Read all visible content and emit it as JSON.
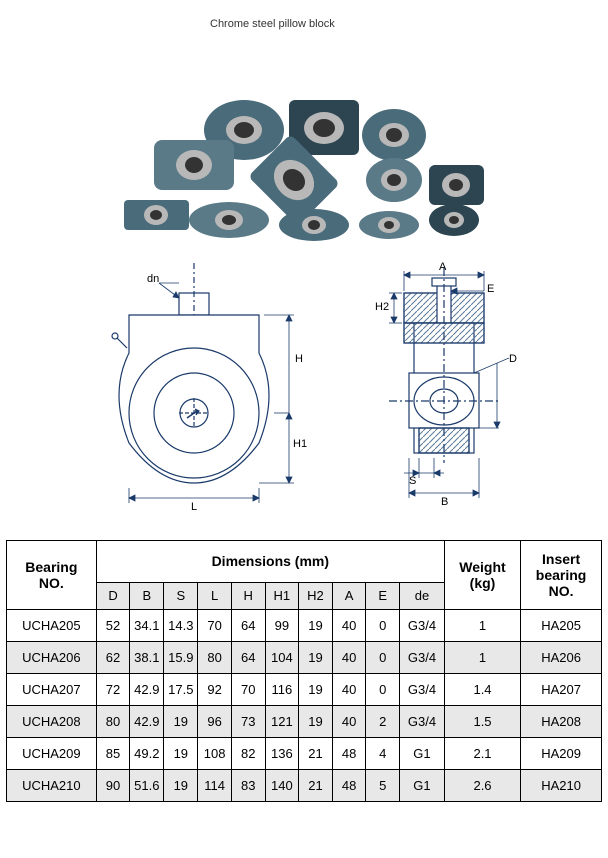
{
  "title": "Chrome steel pillow block",
  "diagram_labels": {
    "dn": "dn",
    "H": "H",
    "H1": "H1",
    "L": "L",
    "A": "A",
    "E": "E",
    "H2": "H2",
    "D": "D",
    "S": "S",
    "B": "B"
  },
  "table": {
    "headers": {
      "bearing_no": "Bearing NO.",
      "dimensions": "Dimensions (mm)",
      "weight": "Weight (kg)",
      "insert_no": "Insert bearing NO."
    },
    "sub_headers": [
      "D",
      "B",
      "S",
      "L",
      "H",
      "H1",
      "H2",
      "A",
      "E",
      "de"
    ],
    "rows": [
      {
        "bearing": "UCHA205",
        "D": "52",
        "B": "34.1",
        "S": "14.3",
        "L": "70",
        "H": "64",
        "H1": "99",
        "H2": "19",
        "A": "40",
        "E": "0",
        "de": "G3/4",
        "weight": "1",
        "insert": "HA205"
      },
      {
        "bearing": "UCHA206",
        "D": "62",
        "B": "38.1",
        "S": "15.9",
        "L": "80",
        "H": "64",
        "H1": "104",
        "H2": "19",
        "A": "40",
        "E": "0",
        "de": "G3/4",
        "weight": "1",
        "insert": "HA206"
      },
      {
        "bearing": "UCHA207",
        "D": "72",
        "B": "42.9",
        "S": "17.5",
        "L": "92",
        "H": "70",
        "H1": "116",
        "H2": "19",
        "A": "40",
        "E": "0",
        "de": "G3/4",
        "weight": "1.4",
        "insert": "HA207"
      },
      {
        "bearing": "UCHA208",
        "D": "80",
        "B": "42.9",
        "S": "19",
        "L": "96",
        "H": "73",
        "H1": "121",
        "H2": "19",
        "A": "40",
        "E": "2",
        "de": "G3/4",
        "weight": "1.5",
        "insert": "HA208"
      },
      {
        "bearing": "UCHA209",
        "D": "85",
        "B": "49.2",
        "S": "19",
        "L": "108",
        "H": "82",
        "H1": "136",
        "H2": "21",
        "A": "48",
        "E": "4",
        "de": "G1",
        "weight": "2.1",
        "insert": "HA209"
      },
      {
        "bearing": "UCHA210",
        "D": "90",
        "B": "51.6",
        "S": "19",
        "L": "114",
        "H": "83",
        "H1": "140",
        "H2": "21",
        "A": "48",
        "E": "5",
        "de": "G1",
        "weight": "2.6",
        "insert": "HA210"
      }
    ]
  },
  "colors": {
    "bearing_body": "#4a6b7a",
    "bearing_dark": "#2d4550",
    "bearing_light": "#7a9aa8",
    "bearing_center": "#b8b8b8",
    "diagram_line": "#1a3a6a",
    "diagram_fill": "#ffffff",
    "hatch": "#5a7a9a"
  }
}
